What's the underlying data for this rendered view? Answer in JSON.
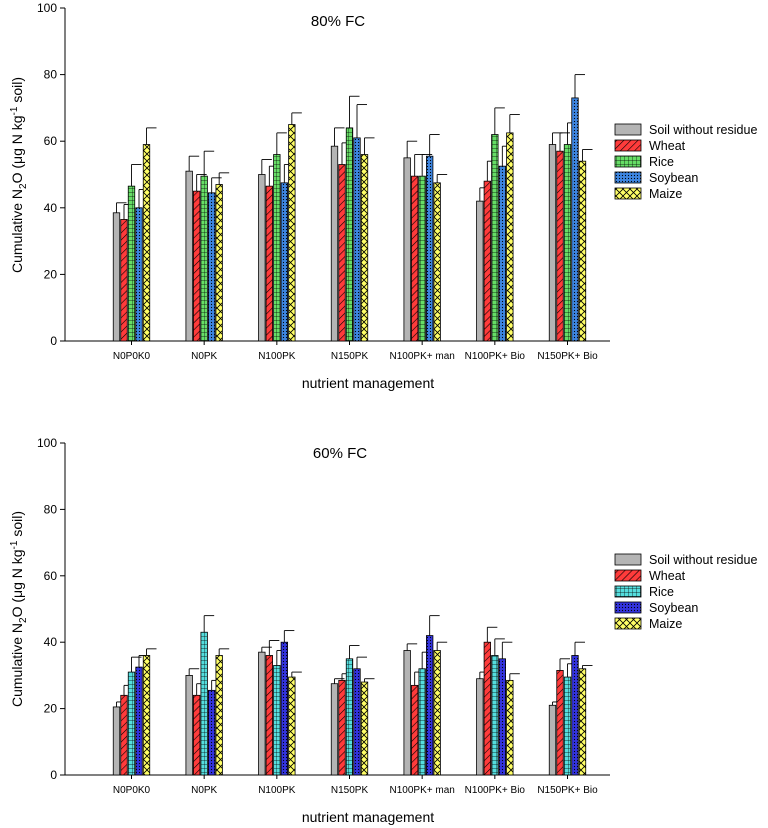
{
  "chart_data": [
    {
      "type": "bar",
      "title": "80% FC",
      "xlabel": "nutrient management",
      "ylabel_main": "Cumulative N",
      "ylabel_sub": "2",
      "ylabel_mid": "O (μg N  kg",
      "ylabel_sup": "-1",
      "ylabel_end": " soil)",
      "ylim": [
        0,
        100
      ],
      "yticks": [
        0,
        20,
        40,
        60,
        80,
        100
      ],
      "categories": [
        "N0P0K0",
        "N0PK",
        "N100PK",
        "N150PK",
        "N100PK+ man",
        "N100PK+ Bio",
        "N150PK+ Bio"
      ],
      "series": [
        {
          "name": "Soil without residue",
          "color": "#b4b4b4",
          "pattern": "solid",
          "values": [
            38.5,
            51,
            50,
            58.5,
            55,
            42,
            59
          ],
          "errors": [
            3,
            4.5,
            4.5,
            5.5,
            5,
            4,
            3.5
          ]
        },
        {
          "name": "Wheat",
          "color": "#ff3b3b",
          "pattern": "diag",
          "values": [
            36.5,
            45,
            46.5,
            53,
            49.5,
            48,
            57
          ],
          "errors": [
            4.5,
            5,
            6,
            6.5,
            6.5,
            6,
            5.5
          ]
        },
        {
          "name": "Rice",
          "color": "#66dd66",
          "pattern": "grid",
          "values": [
            46.5,
            49.5,
            56,
            64,
            49.5,
            62,
            59
          ],
          "errors": [
            6.5,
            7.5,
            6.5,
            9.5,
            6.5,
            8,
            6.5
          ]
        },
        {
          "name": "Soybean",
          "color": "#3d85e0",
          "pattern": "dots",
          "values": [
            40,
            44.5,
            47.5,
            61,
            55.5,
            52.5,
            73
          ],
          "errors": [
            5.5,
            4.5,
            5.5,
            10,
            6.5,
            6,
            7
          ]
        },
        {
          "name": "Maize",
          "color": "#ffff66",
          "pattern": "cross",
          "values": [
            59,
            47,
            65,
            56,
            47.5,
            62.5,
            54
          ],
          "errors": [
            5,
            3.5,
            3.5,
            5,
            2.5,
            5.5,
            3.5
          ]
        }
      ]
    },
    {
      "type": "bar",
      "title": "60% FC",
      "xlabel": "nutrient management",
      "ylabel_main": "Cumulative N",
      "ylabel_sub": "2",
      "ylabel_mid": "O (μg N kg",
      "ylabel_sup": "-1",
      "ylabel_end": " soil)",
      "ylim": [
        0,
        100
      ],
      "yticks": [
        0,
        20,
        40,
        60,
        80,
        100
      ],
      "categories": [
        "N0P0K0",
        "N0PK",
        "N100PK",
        "N150PK",
        "N100PK+ man",
        "N100PK+ Bio",
        "N150PK+ Bio"
      ],
      "series": [
        {
          "name": "Soil without residue",
          "color": "#b4b4b4",
          "pattern": "solid",
          "values": [
            20.5,
            30,
            37,
            27.5,
            37.5,
            29,
            21
          ],
          "errors": [
            1.5,
            2,
            1.5,
            1.5,
            2,
            2,
            1
          ]
        },
        {
          "name": "Wheat",
          "color": "#ff3b3b",
          "pattern": "diag",
          "values": [
            24,
            24,
            36,
            28.5,
            27,
            40,
            31.5
          ],
          "errors": [
            3,
            3.5,
            4.5,
            2,
            4,
            4.5,
            3.5
          ]
        },
        {
          "name": "Rice",
          "color": "#55dddd",
          "pattern": "grid",
          "values": [
            31,
            43,
            33,
            35,
            32,
            36,
            29.5
          ],
          "errors": [
            4.5,
            5,
            4.5,
            4,
            5,
            5,
            4
          ]
        },
        {
          "name": "Soybean",
          "color": "#3333dd",
          "pattern": "dots",
          "values": [
            32.5,
            25.5,
            40,
            32,
            42,
            35,
            36
          ],
          "errors": [
            3.5,
            3,
            3.5,
            3.5,
            6,
            5,
            4
          ]
        },
        {
          "name": "Maize",
          "color": "#ffff66",
          "pattern": "cross",
          "values": [
            36,
            36,
            29.5,
            28,
            37.5,
            28.5,
            32
          ],
          "errors": [
            2,
            2,
            1.5,
            1,
            2.5,
            2,
            1
          ]
        }
      ]
    }
  ]
}
